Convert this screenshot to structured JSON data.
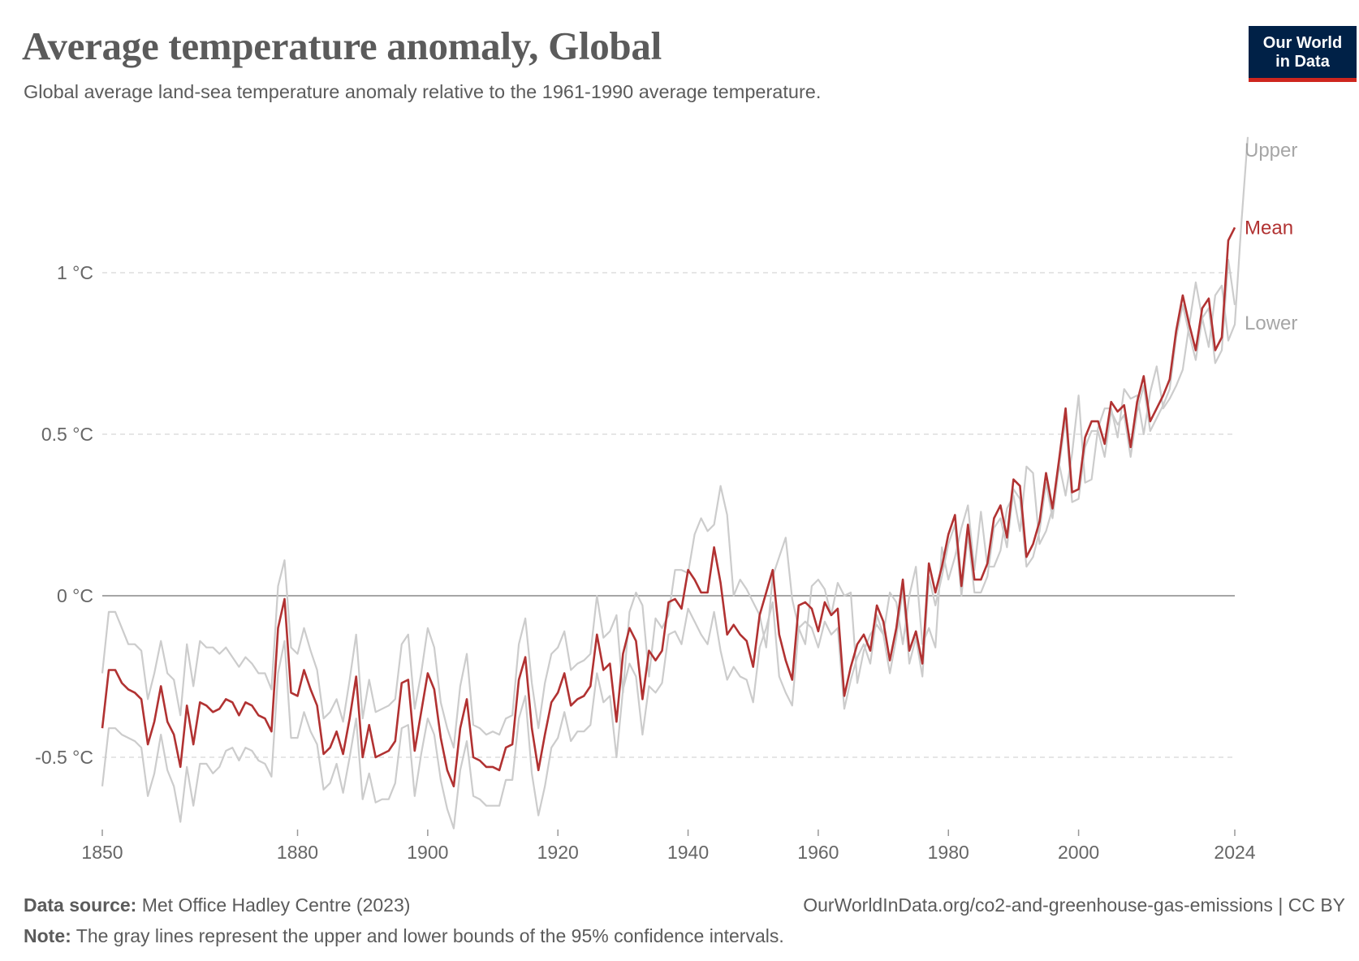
{
  "header": {
    "title": "Average temperature anomaly, Global",
    "subtitle": "Global average land-sea temperature anomaly relative to the 1961-1990 average temperature."
  },
  "logo": {
    "line1": "Our World",
    "line2": "in Data"
  },
  "footer": {
    "source_label": "Data source:",
    "source_text": "Met Office Hadley Centre (2023)",
    "url": "OurWorldInData.org/co2-and-greenhouse-gas-emissions",
    "license": "CC BY",
    "note_label": "Note:",
    "note_text": "The gray lines represent the upper and lower bounds of the 95% confidence intervals."
  },
  "colors": {
    "mean": "#b13232",
    "bounds": "#cccccc",
    "bound_labels": "#a6a6a6",
    "axis_text": "#666666",
    "grid": "#dddddd",
    "zero_line": "#a6a6a6",
    "logo_bg": "#002147",
    "logo_accent": "#ce261e"
  },
  "chart_data": {
    "type": "line",
    "grid": true,
    "ylim": [
      -0.7,
      1.4
    ],
    "xlim": [
      1850,
      2024
    ],
    "y_ticks": [
      -0.5,
      0,
      0.5,
      1
    ],
    "y_tick_labels": [
      "-0.5 °C",
      "0 °C",
      "0.5 °C",
      "1 °C"
    ],
    "x_ticks": [
      1850,
      1880,
      1900,
      1920,
      1940,
      1960,
      1980,
      2000,
      2024
    ],
    "x_tick_labels": [
      "1850",
      "1880",
      "1900",
      "1920",
      "1940",
      "1960",
      "1980",
      "2000",
      "2024"
    ],
    "x_start": 1850,
    "series": [
      {
        "name": "Upper",
        "values": [
          -0.24,
          -0.05,
          -0.05,
          -0.1,
          -0.15,
          -0.15,
          -0.17,
          -0.32,
          -0.24,
          -0.14,
          -0.24,
          -0.26,
          -0.37,
          -0.15,
          -0.28,
          -0.14,
          -0.16,
          -0.16,
          -0.18,
          -0.16,
          -0.19,
          -0.22,
          -0.19,
          -0.21,
          -0.24,
          -0.24,
          -0.29,
          0.03,
          0.11,
          -0.16,
          -0.18,
          -0.1,
          -0.17,
          -0.23,
          -0.38,
          -0.36,
          -0.32,
          -0.39,
          -0.26,
          -0.12,
          -0.38,
          -0.26,
          -0.36,
          -0.35,
          -0.34,
          -0.32,
          -0.15,
          -0.12,
          -0.35,
          -0.24,
          -0.1,
          -0.16,
          -0.33,
          -0.41,
          -0.47,
          -0.28,
          -0.18,
          -0.4,
          -0.41,
          -0.43,
          -0.42,
          -0.43,
          -0.38,
          -0.37,
          -0.15,
          -0.07,
          -0.27,
          -0.41,
          -0.27,
          -0.18,
          -0.16,
          -0.11,
          -0.23,
          -0.21,
          -0.2,
          -0.18,
          0.0,
          -0.13,
          -0.11,
          -0.06,
          -0.3,
          -0.05,
          0.01,
          -0.03,
          -0.25,
          -0.07,
          -0.1,
          -0.06,
          0.08,
          0.08,
          0.07,
          0.19,
          0.24,
          0.2,
          0.22,
          0.34,
          0.25,
          0.0,
          0.05,
          0.02,
          -0.02,
          -0.06,
          -0.16,
          0.06,
          0.12,
          0.18,
          -0.01,
          -0.1,
          -0.15,
          0.03,
          0.05,
          0.02,
          -0.06,
          0.04,
          0.0,
          0.01,
          -0.27,
          -0.17,
          -0.12,
          -0.09,
          -0.12,
          0.01,
          -0.02,
          -0.15,
          0.0,
          0.09,
          -0.15,
          -0.1,
          -0.16,
          0.15,
          0.05,
          0.12,
          0.21,
          0.28,
          0.08,
          0.26,
          0.09,
          0.09,
          0.14,
          0.27,
          0.31,
          0.2,
          0.4,
          0.38,
          0.16,
          0.2,
          0.27,
          0.41,
          0.31,
          0.44,
          0.62,
          0.35,
          0.36,
          0.52,
          0.58,
          0.58,
          0.49,
          0.64,
          0.61,
          0.62,
          0.5,
          0.63,
          0.71,
          0.58,
          0.61,
          0.65,
          0.7,
          0.84,
          0.97,
          0.86,
          0.77,
          0.93,
          0.96,
          0.79,
          0.84,
          1.15,
          1.42
        ]
      },
      {
        "name": "Mean",
        "values": [
          -0.41,
          -0.23,
          -0.23,
          -0.27,
          -0.29,
          -0.3,
          -0.32,
          -0.46,
          -0.39,
          -0.28,
          -0.39,
          -0.43,
          -0.53,
          -0.34,
          -0.46,
          -0.33,
          -0.34,
          -0.36,
          -0.35,
          -0.32,
          -0.33,
          -0.37,
          -0.33,
          -0.34,
          -0.37,
          -0.38,
          -0.42,
          -0.1,
          -0.01,
          -0.3,
          -0.31,
          -0.23,
          -0.29,
          -0.34,
          -0.49,
          -0.47,
          -0.42,
          -0.49,
          -0.38,
          -0.25,
          -0.5,
          -0.4,
          -0.5,
          -0.49,
          -0.48,
          -0.45,
          -0.27,
          -0.26,
          -0.48,
          -0.36,
          -0.24,
          -0.29,
          -0.44,
          -0.54,
          -0.59,
          -0.41,
          -0.32,
          -0.5,
          -0.51,
          -0.53,
          -0.53,
          -0.54,
          -0.47,
          -0.46,
          -0.26,
          -0.19,
          -0.41,
          -0.54,
          -0.43,
          -0.33,
          -0.3,
          -0.24,
          -0.34,
          -0.32,
          -0.31,
          -0.28,
          -0.12,
          -0.23,
          -0.21,
          -0.39,
          -0.18,
          -0.1,
          -0.14,
          -0.32,
          -0.17,
          -0.2,
          -0.17,
          -0.02,
          -0.01,
          -0.04,
          0.08,
          0.05,
          0.01,
          0.01,
          0.15,
          0.04,
          -0.12,
          -0.09,
          -0.12,
          -0.14,
          -0.22,
          -0.06,
          0.01,
          0.08,
          -0.12,
          -0.2,
          -0.26,
          -0.03,
          -0.02,
          -0.04,
          -0.11,
          -0.02,
          -0.06,
          -0.04,
          -0.31,
          -0.22,
          -0.15,
          -0.12,
          -0.17,
          -0.03,
          -0.08,
          -0.2,
          -0.1,
          0.05,
          -0.17,
          -0.11,
          -0.21,
          0.1,
          0.01,
          0.09,
          0.19,
          0.25,
          0.03,
          0.22,
          0.05,
          0.05,
          0.1,
          0.24,
          0.28,
          0.18,
          0.36,
          0.34,
          0.12,
          0.16,
          0.23,
          0.38,
          0.27,
          0.42,
          0.58,
          0.32,
          0.33,
          0.49,
          0.54,
          0.54,
          0.47,
          0.6,
          0.57,
          0.59,
          0.46,
          0.6,
          0.68,
          0.54,
          0.58,
          0.62,
          0.67,
          0.82,
          0.93,
          0.84,
          0.76,
          0.89,
          0.92,
          0.76,
          0.8,
          1.1,
          1.14
        ]
      },
      {
        "name": "Lower",
        "values": [
          -0.59,
          -0.41,
          -0.41,
          -0.43,
          -0.44,
          -0.45,
          -0.47,
          -0.62,
          -0.55,
          -0.43,
          -0.54,
          -0.59,
          -0.7,
          -0.53,
          -0.65,
          -0.52,
          -0.52,
          -0.55,
          -0.53,
          -0.48,
          -0.47,
          -0.51,
          -0.47,
          -0.48,
          -0.51,
          -0.52,
          -0.56,
          -0.24,
          -0.14,
          -0.44,
          -0.44,
          -0.36,
          -0.42,
          -0.46,
          -0.6,
          -0.58,
          -0.52,
          -0.61,
          -0.5,
          -0.38,
          -0.63,
          -0.55,
          -0.64,
          -0.63,
          -0.63,
          -0.58,
          -0.41,
          -0.4,
          -0.62,
          -0.49,
          -0.38,
          -0.43,
          -0.57,
          -0.66,
          -0.72,
          -0.54,
          -0.45,
          -0.62,
          -0.63,
          -0.65,
          -0.65,
          -0.65,
          -0.57,
          -0.57,
          -0.38,
          -0.31,
          -0.55,
          -0.68,
          -0.59,
          -0.47,
          -0.44,
          -0.36,
          -0.45,
          -0.42,
          -0.42,
          -0.4,
          -0.24,
          -0.33,
          -0.31,
          -0.5,
          -0.29,
          -0.21,
          -0.25,
          -0.43,
          -0.28,
          -0.3,
          -0.27,
          -0.12,
          -0.11,
          -0.15,
          -0.04,
          -0.08,
          -0.12,
          -0.15,
          -0.05,
          -0.17,
          -0.26,
          -0.22,
          -0.25,
          -0.26,
          -0.33,
          -0.16,
          -0.1,
          -0.02,
          -0.25,
          -0.3,
          -0.34,
          -0.1,
          -0.08,
          -0.1,
          -0.16,
          -0.08,
          -0.12,
          -0.1,
          -0.35,
          -0.26,
          -0.19,
          -0.15,
          -0.21,
          -0.06,
          -0.12,
          -0.24,
          -0.13,
          0.02,
          -0.21,
          -0.13,
          -0.25,
          0.06,
          -0.03,
          0.06,
          0.16,
          0.22,
          0.0,
          0.19,
          0.01,
          0.01,
          0.06,
          0.21,
          0.24,
          0.15,
          0.33,
          0.3,
          0.09,
          0.12,
          0.2,
          0.35,
          0.24,
          0.4,
          0.55,
          0.29,
          0.3,
          0.46,
          0.51,
          0.51,
          0.43,
          0.57,
          0.53,
          0.56,
          0.43,
          0.57,
          0.65,
          0.51,
          0.55,
          0.59,
          0.64,
          0.8,
          0.9,
          0.81,
          0.73,
          0.86,
          0.89,
          0.72,
          0.76,
          1.04,
          0.9
        ]
      }
    ]
  }
}
